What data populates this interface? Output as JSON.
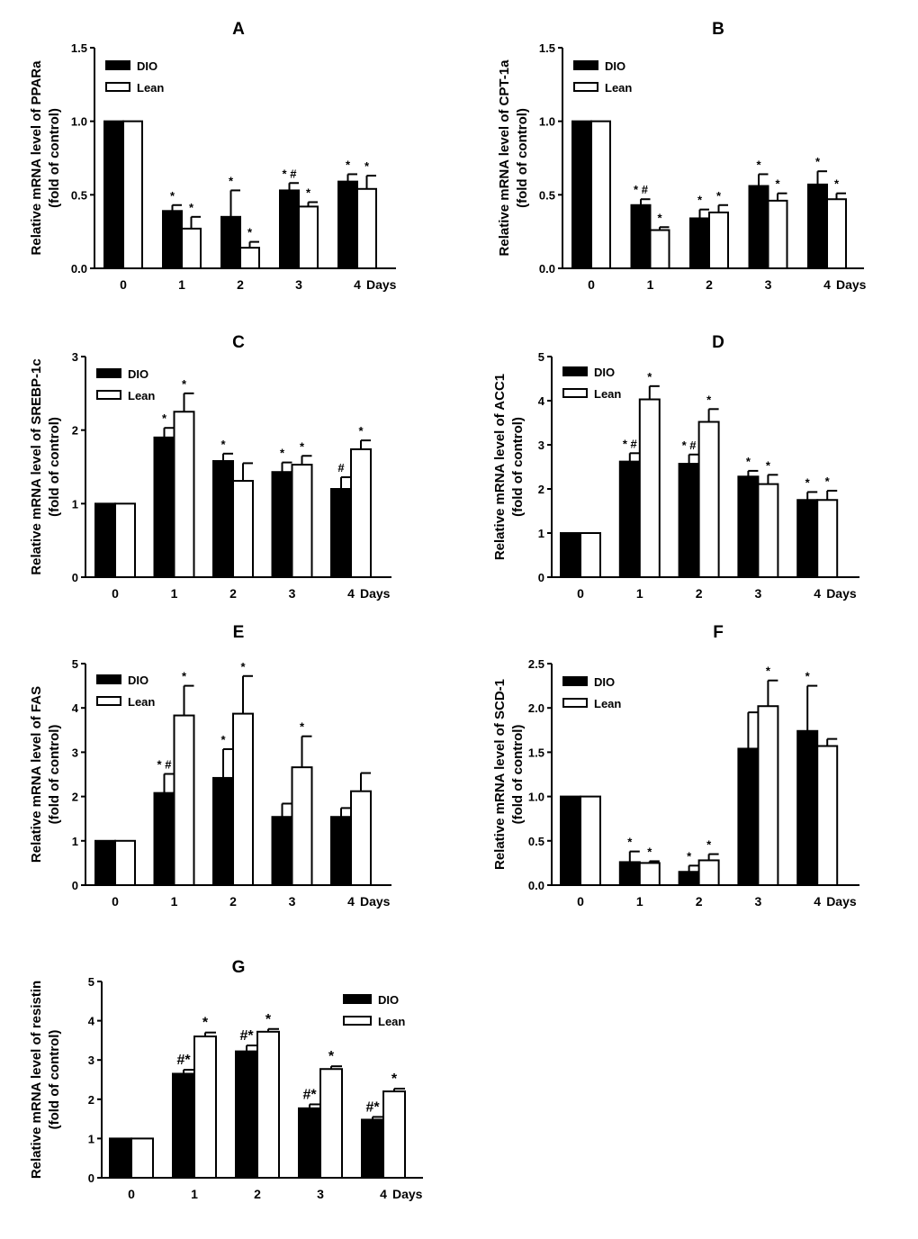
{
  "chart_data": [
    {
      "panel": "A",
      "type": "bar",
      "categories": [
        "0",
        "1",
        "2",
        "3",
        "4"
      ],
      "xlabel_suffix": "Days",
      "ylabel": [
        "Relative mRNA level of PPARa",
        "(fold of control)"
      ],
      "ylim": [
        0,
        1.5
      ],
      "yticks": [
        "0.0",
        "0.5",
        "1.0",
        "1.5"
      ],
      "ytick_values": [
        0,
        0.5,
        1.0,
        1.5
      ],
      "legend_placement": "top-left",
      "series": [
        {
          "name": "DIO",
          "color": "#000000",
          "values": [
            1,
            0.39,
            0.35,
            0.53,
            0.59
          ],
          "errors": [
            0,
            0.04,
            0.18,
            0.05,
            0.05
          ],
          "annotations": [
            "",
            "*",
            "*",
            "* #",
            "*"
          ]
        },
        {
          "name": "Lean",
          "color": "#ffffff",
          "values": [
            1,
            0.27,
            0.14,
            0.42,
            0.54
          ],
          "errors": [
            0,
            0.08,
            0.04,
            0.03,
            0.09
          ],
          "annotations": [
            "",
            "*",
            "*",
            "*",
            "*"
          ]
        }
      ]
    },
    {
      "panel": "B",
      "type": "bar",
      "categories": [
        "0",
        "1",
        "2",
        "3",
        "4"
      ],
      "xlabel_suffix": "Days",
      "ylabel": [
        "Relative mRNA level of CPT-1a",
        "(fold of control)"
      ],
      "ylim": [
        0,
        1.5
      ],
      "yticks": [
        "0.0",
        "0.5",
        "1.0",
        "1.5"
      ],
      "ytick_values": [
        0,
        0.5,
        1.0,
        1.5
      ],
      "legend_placement": "top-left",
      "series": [
        {
          "name": "DIO",
          "color": "#000000",
          "values": [
            1,
            0.43,
            0.34,
            0.56,
            0.57
          ],
          "errors": [
            0,
            0.04,
            0.06,
            0.08,
            0.09
          ],
          "annotations": [
            "",
            "* #",
            "*",
            "*",
            "*"
          ]
        },
        {
          "name": "Lean",
          "color": "#ffffff",
          "values": [
            1,
            0.26,
            0.38,
            0.46,
            0.47
          ],
          "errors": [
            0,
            0.02,
            0.05,
            0.05,
            0.04
          ],
          "annotations": [
            "",
            "*",
            "*",
            "*",
            "*"
          ]
        }
      ]
    },
    {
      "panel": "C",
      "type": "bar",
      "categories": [
        "0",
        "1",
        "2",
        "3",
        "4"
      ],
      "xlabel_suffix": "Days",
      "ylabel": [
        "Relative mRNA level of SREBP-1c",
        "(fold of control)"
      ],
      "ylim": [
        0,
        3
      ],
      "yticks": [
        "0",
        "1",
        "2",
        "3"
      ],
      "ytick_values": [
        0,
        1,
        2,
        3
      ],
      "legend_placement": "top-left",
      "series": [
        {
          "name": "DIO",
          "color": "#000000",
          "values": [
            1,
            1.9,
            1.58,
            1.43,
            1.2
          ],
          "errors": [
            0,
            0.13,
            0.1,
            0.13,
            0.16
          ],
          "annotations": [
            "",
            "*",
            "*",
            "*",
            "#"
          ]
        },
        {
          "name": "Lean",
          "color": "#ffffff",
          "values": [
            1,
            2.25,
            1.31,
            1.53,
            1.74
          ],
          "errors": [
            0,
            0.25,
            0.24,
            0.12,
            0.12
          ],
          "annotations": [
            "",
            "*",
            "",
            "*",
            "*"
          ]
        }
      ]
    },
    {
      "panel": "D",
      "type": "bar",
      "categories": [
        "0",
        "1",
        "2",
        "3",
        "4"
      ],
      "xlabel_suffix": "Days",
      "ylabel": [
        "Relative mRNA level of ACC1",
        "(fold of control)"
      ],
      "ylim": [
        0,
        5
      ],
      "yticks": [
        "0",
        "1",
        "2",
        "3",
        "4",
        "5"
      ],
      "ytick_values": [
        0,
        1,
        2,
        3,
        4,
        5
      ],
      "legend_placement": "top-left",
      "series": [
        {
          "name": "DIO",
          "color": "#000000",
          "values": [
            1,
            2.62,
            2.57,
            2.28,
            1.75
          ],
          "errors": [
            0,
            0.19,
            0.21,
            0.13,
            0.18
          ],
          "annotations": [
            "",
            "* #",
            "* #",
            "*",
            "*"
          ]
        },
        {
          "name": "Lean",
          "color": "#ffffff",
          "values": [
            1,
            4.03,
            3.52,
            2.11,
            1.75
          ],
          "errors": [
            0,
            0.3,
            0.29,
            0.21,
            0.21
          ],
          "annotations": [
            "",
            "*",
            "*",
            "*",
            "*"
          ]
        }
      ]
    },
    {
      "panel": "E",
      "type": "bar",
      "categories": [
        "0",
        "1",
        "2",
        "3",
        "4"
      ],
      "xlabel_suffix": "Days",
      "ylabel": [
        "Relative mRNA level of FAS",
        "(fold of control)"
      ],
      "ylim": [
        0,
        5
      ],
      "yticks": [
        "0",
        "1",
        "2",
        "3",
        "4",
        "5"
      ],
      "ytick_values": [
        0,
        1,
        2,
        3,
        4,
        5
      ],
      "legend_placement": "top-left",
      "series": [
        {
          "name": "DIO",
          "color": "#000000",
          "values": [
            1,
            2.08,
            2.42,
            1.54,
            1.54
          ],
          "errors": [
            0,
            0.43,
            0.65,
            0.3,
            0.2
          ],
          "annotations": [
            "",
            "* #",
            "*",
            "",
            ""
          ]
        },
        {
          "name": "Lean",
          "color": "#ffffff",
          "values": [
            1,
            3.83,
            3.87,
            2.66,
            2.12
          ],
          "errors": [
            0,
            0.67,
            0.85,
            0.7,
            0.41
          ],
          "annotations": [
            "",
            "*",
            "*",
            "*",
            ""
          ]
        }
      ]
    },
    {
      "panel": "F",
      "type": "bar",
      "categories": [
        "0",
        "1",
        "2",
        "3",
        "4"
      ],
      "xlabel_suffix": "Days",
      "ylabel": [
        "Relative mRNA level of SCD-1",
        "(fold of control)"
      ],
      "ylim": [
        0,
        2.5
      ],
      "yticks": [
        "0.0",
        "0.5",
        "1.0",
        "1.5",
        "2.0",
        "2.5"
      ],
      "ytick_values": [
        0,
        0.5,
        1,
        1.5,
        2,
        2.5
      ],
      "legend_placement": "top-left",
      "series": [
        {
          "name": "DIO",
          "color": "#000000",
          "values": [
            1,
            0.26,
            0.15,
            1.54,
            1.74
          ],
          "errors": [
            0,
            0.12,
            0.07,
            0.41,
            0.51
          ],
          "annotations": [
            "",
            "*",
            "*",
            "",
            "*"
          ]
        },
        {
          "name": "Lean",
          "color": "#ffffff",
          "values": [
            1,
            0.25,
            0.28,
            2.02,
            1.57
          ],
          "errors": [
            0,
            0.02,
            0.07,
            0.29,
            0.08
          ],
          "annotations": [
            "",
            "*",
            "*",
            "*",
            ""
          ]
        }
      ]
    },
    {
      "panel": "G",
      "type": "bar",
      "categories": [
        "0",
        "1",
        "2",
        "3",
        "4"
      ],
      "xlabel_suffix": "Days",
      "ylabel": [
        "Relative mRNA level of resistin",
        "(fold of control)"
      ],
      "ylim": [
        0,
        5
      ],
      "yticks": [
        "0",
        "1",
        "2",
        "3",
        "4",
        "5"
      ],
      "ytick_values": [
        0,
        1,
        2,
        3,
        4,
        5
      ],
      "legend_placement": "top-right",
      "series": [
        {
          "name": "DIO",
          "color": "#000000",
          "values": [
            1,
            2.65,
            3.22,
            1.77,
            1.48
          ],
          "errors": [
            0,
            0.1,
            0.15,
            0.1,
            0.07
          ],
          "annotations": [
            "",
            "#*",
            "#*",
            "#*",
            "#*"
          ]
        },
        {
          "name": "Lean",
          "color": "#ffffff",
          "values": [
            1,
            3.6,
            3.72,
            2.77,
            2.2
          ],
          "errors": [
            0,
            0.1,
            0.07,
            0.07,
            0.07
          ],
          "annotations": [
            "",
            "*",
            "*",
            "*",
            "*"
          ]
        }
      ]
    }
  ]
}
